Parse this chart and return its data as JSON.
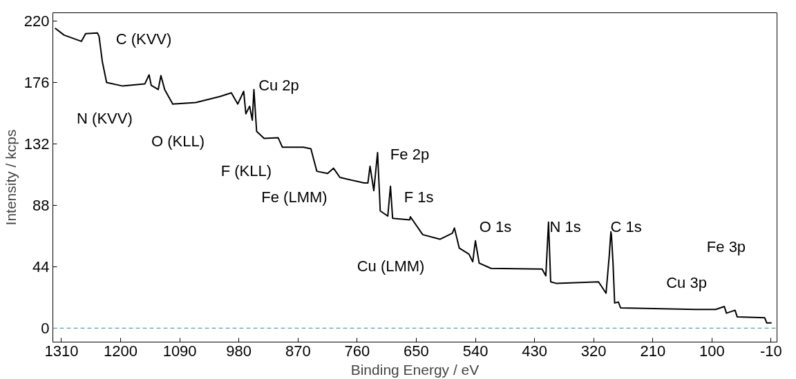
{
  "chart_data": {
    "type": "line",
    "xlabel": "Binding Energy / eV",
    "ylabel": "Intensity / kcps",
    "xlim": [
      1326,
      -21
    ],
    "ylim": [
      -10,
      226
    ],
    "xticks": [
      1310,
      1200,
      1090,
      980,
      870,
      760,
      650,
      540,
      430,
      320,
      210,
      100,
      -10
    ],
    "yticks": [
      0,
      44,
      88,
      132,
      176,
      220
    ],
    "grid": false,
    "marker": "none",
    "line_style": "solid",
    "series": [
      {
        "color": "#000000",
        "x": [
          1322,
          1305,
          1273,
          1265,
          1243,
          1240,
          1234,
          1226,
          1196,
          1155,
          1147,
          1143,
          1130,
          1125,
          1118,
          1103,
          1060,
          1015,
          994,
          982,
          971,
          967,
          960,
          955,
          952,
          947,
          933,
          907,
          899,
          860,
          846,
          835,
          815,
          804,
          792,
          747,
          740,
          736,
          729,
          722,
          717,
          703,
          698,
          694,
          662,
          661,
          638,
          606,
          583,
          579,
          570,
          552,
          545,
          540,
          533,
          511,
          416,
          409,
          404,
          400,
          389,
          311,
          297,
          291,
          288,
          287,
          284,
          281,
          274,
          270,
          130,
          93,
          77,
          73,
          57,
          53,
          2,
          -2,
          -11
        ],
        "values": [
          215,
          210,
          205.5,
          211,
          211.5,
          209,
          191,
          176,
          173.5,
          175,
          181.5,
          174,
          171,
          181,
          171,
          160.6,
          161.7,
          166,
          168.6,
          160.6,
          169.7,
          153.6,
          159,
          149,
          171,
          141,
          136,
          136.5,
          129.6,
          129.6,
          128.5,
          112.4,
          110.8,
          114.6,
          108,
          104,
          104,
          116,
          98.5,
          125.8,
          84,
          80.3,
          101.7,
          78.7,
          77.6,
          79.8,
          67,
          63.7,
          68,
          71.7,
          57.3,
          53,
          47.6,
          62.6,
          46.6,
          42.8,
          42.3,
          37.5,
          76,
          33.2,
          32,
          33.2,
          25,
          52,
          69,
          67,
          46.6,
          18,
          18.7,
          14.5,
          13.4,
          13.4,
          15.5,
          10.7,
          12.8,
          8,
          7.5,
          3.7,
          3.7
        ]
      }
    ],
    "ref_lines": [
      {
        "axis": "y",
        "value": 0,
        "color": "#5f9ea0",
        "line_style": "dashed"
      }
    ],
    "annotations": [
      "C (KVV)",
      "N (KVV)",
      "O (KLL)",
      "Cu 2p",
      "F (KLL)",
      "Fe 2p",
      "Fe (LMM)",
      "F 1s",
      "O 1s",
      "Cu (LMM)",
      "N 1s",
      "C 1s",
      "Fe 3p",
      "Cu 3p"
    ]
  }
}
